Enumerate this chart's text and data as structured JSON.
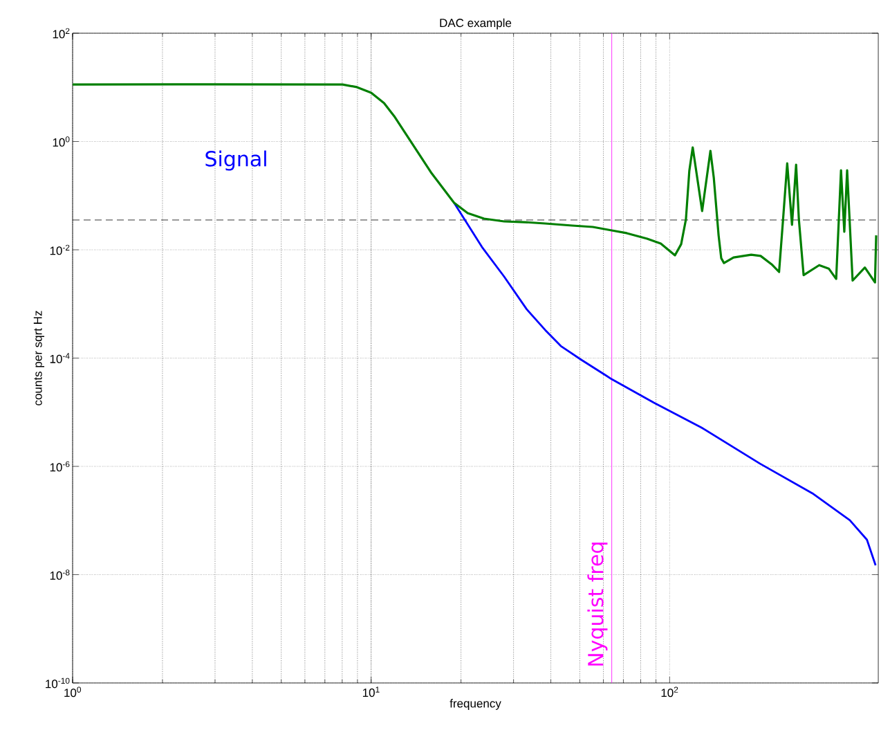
{
  "chart_data": {
    "type": "line",
    "title": "DAC example",
    "xlabel": "frequency",
    "ylabel": "counts per sqrt Hz",
    "log": "xy",
    "grid": true,
    "xlim": [
      1,
      500
    ],
    "ylim": [
      1e-10,
      100
    ],
    "xticks": [
      {
        "value": 1,
        "label": "10$^{0}$"
      },
      {
        "value": 10,
        "label": "10$^{1}$"
      },
      {
        "value": 100,
        "label": "10$^{2}$"
      }
    ],
    "yticks": [
      {
        "value": 1e-10,
        "label": "10$^{-10}$"
      },
      {
        "value": 1e-08,
        "label": "10$^{-8}$"
      },
      {
        "value": 1e-06,
        "label": "10$^{-6}$"
      },
      {
        "value": 0.0001,
        "label": "10$^{-4}$"
      },
      {
        "value": 0.01,
        "label": "10$^{-2}$"
      },
      {
        "value": 1,
        "label": "10$^{0}$"
      },
      {
        "value": 100,
        "label": "10$^{2}$"
      }
    ],
    "series": [
      {
        "name": "Signal",
        "color": "#0000ff",
        "x": [
          18.96,
          23.5,
          27.9,
          33.2,
          38.3,
          43.2,
          50.6,
          61.4,
          64.0,
          88.6,
          127.9,
          200.9,
          300.8,
          401.6,
          458.1,
          489.8
        ],
        "values": [
          0.074,
          0.0113,
          0.0032,
          0.0008,
          0.00033,
          0.000167,
          9.3e-05,
          4.72e-05,
          4.07e-05,
          1.5e-05,
          5.2e-06,
          1.12e-06,
          3.18e-07,
          1.01e-07,
          4.42e-08,
          1.49e-08
        ]
      },
      {
        "color": "#007f00",
        "x": [
          1,
          2.78,
          8.02,
          8.96,
          10.0,
          11.05,
          11.95,
          15.86,
          18.96,
          21.06,
          23.9,
          27.9,
          32.7,
          38.3,
          47.2,
          55.3,
          64.0,
          71.8,
          84.1,
          93.4,
          104.2,
          109.3,
          113.4,
          116.4,
          119.5,
          128.5,
          137.0,
          140.6,
          145.9,
          148.9,
          152.1,
          163.7,
          187.6,
          201.8,
          219.6,
          232.6,
          239.9,
          247.7,
          257.0,
          265.3,
          271.0,
          281.1,
          317.0,
          341.3,
          361.4,
          375.1,
          384.8,
          393.3,
          410.2,
          450.9,
          487.5,
          492.0
        ],
        "values": [
          11.3,
          11.4,
          11.3,
          10.1,
          7.96,
          5.12,
          2.93,
          0.27,
          0.074,
          0.0475,
          0.0376,
          0.0334,
          0.0324,
          0.0306,
          0.028,
          0.0264,
          0.0228,
          0.0203,
          0.016,
          0.013,
          0.0079,
          0.0127,
          0.0365,
          0.286,
          0.778,
          0.052,
          0.672,
          0.213,
          0.0185,
          0.007,
          0.0057,
          0.0072,
          0.0081,
          0.0077,
          0.0054,
          0.0039,
          0.0365,
          0.395,
          0.0289,
          0.373,
          0.0365,
          0.0034,
          0.0052,
          0.0045,
          0.0029,
          0.295,
          0.0215,
          0.295,
          0.0027,
          0.0047,
          0.0025,
          0.0185
        ]
      }
    ],
    "ref_lines": [
      {
        "axis": "y",
        "value": 0.0355,
        "color": "#000000",
        "line_style": "dashed"
      },
      {
        "axis": "x",
        "value": 64,
        "label": "Nyquist freq",
        "color": "#ff00ff"
      }
    ]
  }
}
